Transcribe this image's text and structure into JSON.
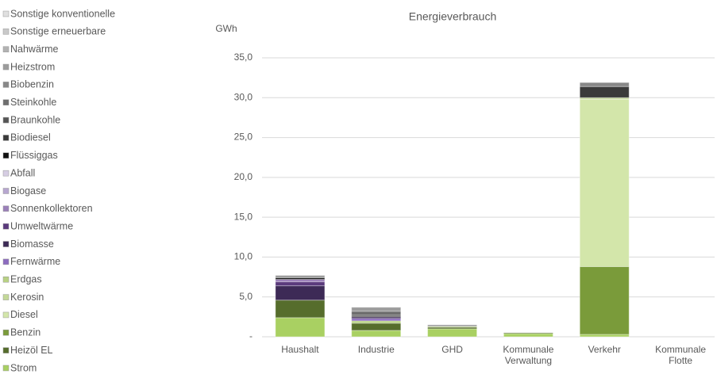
{
  "chart_data": {
    "type": "stacked_bar",
    "title": "Energieverbrauch",
    "y_label": "GWh",
    "categories": [
      "Haushalt",
      "Industrie",
      "GHD",
      "Kommunale Verwaltung",
      "Verkehr",
      "Kommunale Flotte"
    ],
    "series": [
      {
        "name": "Strom",
        "color": "#a9d062",
        "values": [
          2.4,
          0.8,
          1.0,
          0.4,
          0.3,
          0
        ]
      },
      {
        "name": "Heizöl EL",
        "color": "#566d2c",
        "values": [
          2.2,
          0.9,
          0.2,
          0.1,
          0,
          0
        ]
      },
      {
        "name": "Benzin",
        "color": "#7a9b3a",
        "values": [
          0,
          0,
          0,
          0,
          8.5,
          0
        ]
      },
      {
        "name": "Diesel",
        "color": "#d3e6aa",
        "values": [
          0,
          0,
          0,
          0,
          21.0,
          0
        ]
      },
      {
        "name": "Kerosin",
        "color": "#c3d898",
        "values": [
          0,
          0,
          0,
          0,
          0.2,
          0
        ]
      },
      {
        "name": "Erdgas",
        "color": "#b8d183",
        "values": [
          0,
          0.3,
          0.1,
          0,
          0,
          0
        ]
      },
      {
        "name": "Fernwärme",
        "color": "#8c6bbf",
        "values": [
          0,
          0.3,
          0,
          0,
          0,
          0
        ]
      },
      {
        "name": "Biomasse",
        "color": "#3d2a56",
        "values": [
          1.8,
          0.2,
          0,
          0,
          0,
          0
        ]
      },
      {
        "name": "Umweltwärme",
        "color": "#5b3a7c",
        "values": [
          0.5,
          0,
          0,
          0,
          0,
          0
        ]
      },
      {
        "name": "Sonnenkollektoren",
        "color": "#9b80b9",
        "values": [
          0.3,
          0,
          0,
          0,
          0,
          0
        ]
      },
      {
        "name": "Biogase",
        "color": "#b7a7d0",
        "values": [
          0,
          0,
          0,
          0,
          0,
          0
        ]
      },
      {
        "name": "Abfall",
        "color": "#d6cde3",
        "values": [
          0,
          0,
          0,
          0,
          0,
          0
        ]
      },
      {
        "name": "Flüssiggas",
        "color": "#111111",
        "values": [
          0.2,
          0,
          0,
          0,
          0,
          0
        ]
      },
      {
        "name": "Biodiesel",
        "color": "#3a3a3a",
        "values": [
          0,
          0,
          0,
          0,
          1.4,
          0
        ]
      },
      {
        "name": "Braunkohle",
        "color": "#555555",
        "values": [
          0,
          0.2,
          0,
          0,
          0,
          0
        ]
      },
      {
        "name": "Steinkohle",
        "color": "#6e6e6e",
        "values": [
          0,
          0.5,
          0,
          0,
          0,
          0
        ]
      },
      {
        "name": "Biobenzin",
        "color": "#888888",
        "values": [
          0,
          0,
          0,
          0,
          0.5,
          0
        ]
      },
      {
        "name": "Heizstrom",
        "color": "#9c9c9c",
        "values": [
          0.3,
          0.5,
          0.2,
          0,
          0,
          0
        ]
      },
      {
        "name": "Nahwärme",
        "color": "#b2b2b2",
        "values": [
          0,
          0,
          0,
          0,
          0,
          0
        ]
      },
      {
        "name": "Sonstige erneuerbare",
        "color": "#c9c9c9",
        "values": [
          0,
          0,
          0,
          0,
          0,
          0
        ]
      },
      {
        "name": "Sonstige konventionelle",
        "color": "#e0e0e0",
        "values": [
          0,
          0,
          0,
          0,
          0,
          0
        ]
      }
    ],
    "ylim": [
      0,
      35
    ],
    "yticks": [
      {
        "value": 0,
        "label": "-"
      },
      {
        "value": 5,
        "label": "5,0"
      },
      {
        "value": 10,
        "label": "10,0"
      },
      {
        "value": 15,
        "label": "15,0"
      },
      {
        "value": 20,
        "label": "20,0"
      },
      {
        "value": 25,
        "label": "25,0"
      },
      {
        "value": 30,
        "label": "30,0"
      },
      {
        "value": 35,
        "label": "35,0"
      }
    ],
    "grid": true,
    "legend": "left"
  }
}
